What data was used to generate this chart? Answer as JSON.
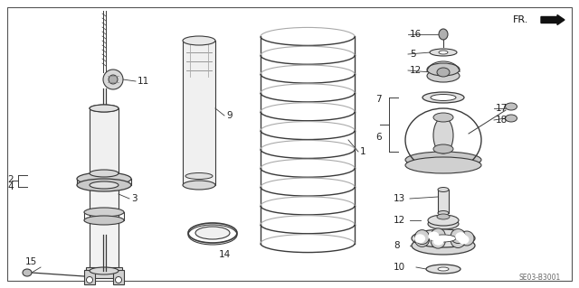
{
  "bg_color": "#ffffff",
  "lc": "#3a3a3a",
  "diagram_code": "SE03-B3001",
  "fig_w": 6.4,
  "fig_h": 3.19,
  "dpi": 100
}
